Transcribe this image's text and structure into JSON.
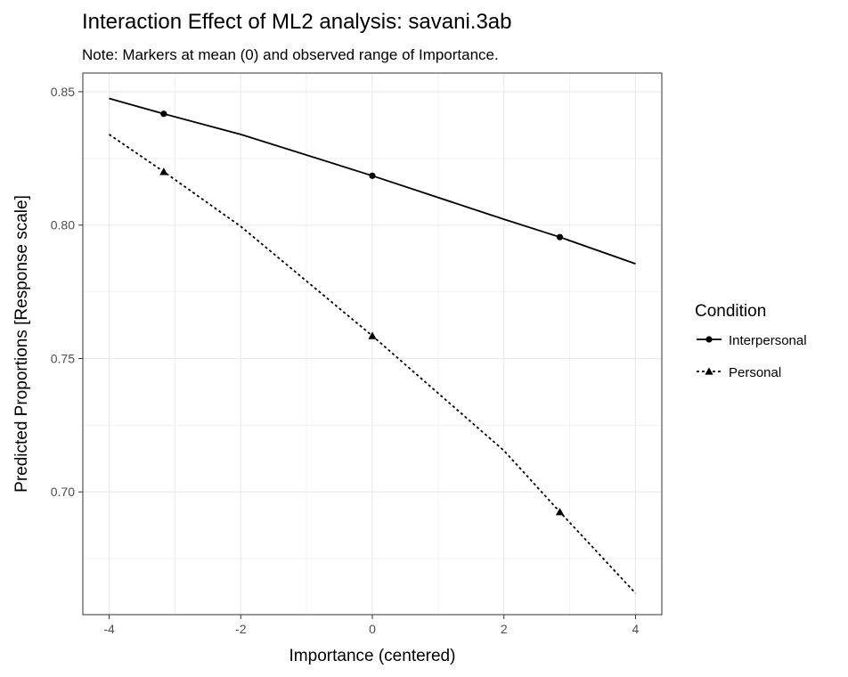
{
  "chart_data": {
    "type": "line",
    "title": "Interaction Effect of ML2 analysis: savani.3ab",
    "subtitle": "Note: Markers at mean (0) and observed range of Importance.",
    "xlabel": "Importance (centered)",
    "ylabel": "Predicted Proportions [Response scale]",
    "xlim": [
      -4.4,
      4.4
    ],
    "ylim": [
      0.654,
      0.857
    ],
    "x_ticks": [
      -4,
      -2,
      0,
      2,
      4
    ],
    "x_tick_labels": [
      "-4",
      "-2",
      "0",
      "2",
      "4"
    ],
    "y_ticks": [
      0.7,
      0.75,
      0.8,
      0.85
    ],
    "y_tick_labels": [
      "0.70",
      "0.75",
      "0.80",
      "0.85"
    ],
    "grid": true,
    "legend": {
      "title": "Condition",
      "position": "right"
    },
    "series": [
      {
        "name": "Interpersonal",
        "line_style": "solid",
        "marker": "circle",
        "color": "#000000",
        "x": [
          -4,
          -3.17,
          -2,
          0,
          2,
          2.85,
          4
        ],
        "y": [
          0.8475,
          0.8417,
          0.834,
          0.8185,
          0.8022,
          0.7955,
          0.7855
        ],
        "markers_x": [
          -3.17,
          0,
          2.85
        ],
        "markers_y": [
          0.8417,
          0.8185,
          0.7955
        ]
      },
      {
        "name": "Personal",
        "line_style": "dotted",
        "marker": "triangle",
        "color": "#000000",
        "x": [
          -4,
          -3.17,
          -2,
          0,
          2,
          2.85,
          4
        ],
        "y": [
          0.834,
          0.82,
          0.7995,
          0.7585,
          0.7155,
          0.6925,
          0.662
        ],
        "markers_x": [
          -3.17,
          0,
          2.85
        ],
        "markers_y": [
          0.82,
          0.7585,
          0.6925
        ]
      }
    ]
  }
}
